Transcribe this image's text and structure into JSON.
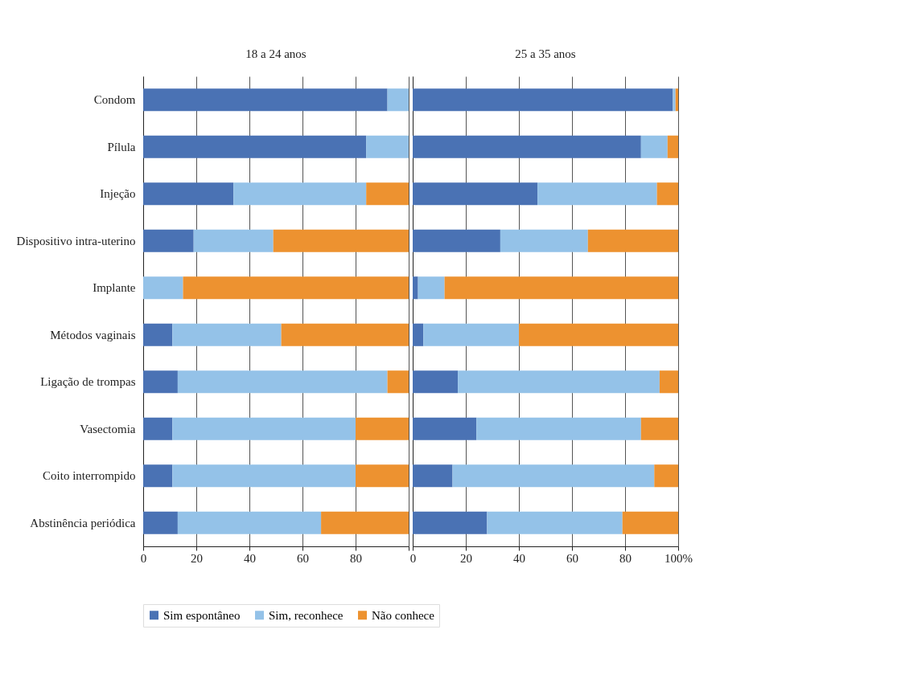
{
  "chart_data": [
    {
      "type": "bar",
      "title": "18 a 24 anos",
      "orientation": "horizontal",
      "stacked": true,
      "categories": [
        "Condom",
        "Pílula",
        "Injeção",
        "Dispositivo intra-uterino",
        "Implante",
        "Métodos vaginais",
        "Ligação de trompas",
        "Vasectomia",
        "Coito interrompido",
        "Abstinência periódica"
      ],
      "series": [
        {
          "name": "Sim espontâneo",
          "color": "#4a72b4",
          "values": [
            92,
            84,
            34,
            19,
            0,
            11,
            13,
            11,
            11,
            13
          ]
        },
        {
          "name": "Sim, reconhece",
          "color": "#94c2e8",
          "values": [
            8,
            16,
            50,
            30,
            15,
            41,
            79,
            69,
            69,
            54
          ]
        },
        {
          "name": "Não conhece",
          "color": "#ed9230",
          "values": [
            0,
            0,
            16,
            51,
            85,
            48,
            8,
            20,
            20,
            33
          ]
        }
      ],
      "xlim": [
        0,
        100
      ],
      "xticks": [
        0,
        20,
        40,
        60,
        80,
        {
          "value": 100,
          "label": null
        }
      ],
      "grid": "x",
      "legend": "bottom"
    },
    {
      "type": "bar",
      "title": "25 a 35 anos",
      "orientation": "horizontal",
      "stacked": true,
      "categories": [
        null,
        null,
        null,
        null,
        null,
        null,
        null,
        null,
        null,
        null
      ],
      "series": [
        {
          "name": "Sim espontâneo",
          "color": "#4a72b4",
          "values": [
            98,
            86,
            47,
            33,
            2,
            4,
            17,
            24,
            15,
            28
          ]
        },
        {
          "name": "Sim, reconhece",
          "color": "#94c2e8",
          "values": [
            1,
            10,
            45,
            33,
            10,
            36,
            76,
            62,
            76,
            51
          ]
        },
        {
          "name": "Não conhece",
          "color": "#ed9230",
          "values": [
            1,
            4,
            8,
            34,
            88,
            60,
            7,
            14,
            9,
            21
          ]
        }
      ],
      "xlim": [
        0,
        100
      ],
      "xticks": [
        0,
        20,
        40,
        60,
        80,
        {
          "value": 100,
          "label": "100%"
        }
      ],
      "grid": "x",
      "tick_labels": "x"
    }
  ]
}
